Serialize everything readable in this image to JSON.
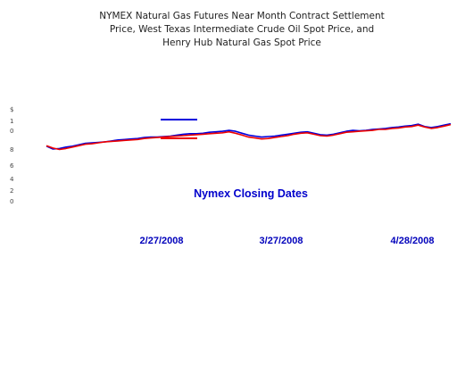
{
  "chart_data": {
    "type": "line",
    "title_lines": [
      "NYMEX Natural Gas Futures Near Month Contract Settlement",
      "Price, West Texas Intermediate Crude Oil Spot Price, and",
      "Henry Hub Natural Gas Spot Price"
    ],
    "xlabel": "Nymex Closing Dates",
    "x_tick_labels": [
      "2/27/2008",
      "3/27/2008",
      "4/28/2008"
    ],
    "y_tick_labels": [
      "$",
      "1",
      "0",
      "8",
      "6",
      "4",
      "2",
      "0"
    ],
    "grid": false,
    "legend_position": "upper-middle",
    "ylim": [
      0,
      14
    ],
    "series": [
      {
        "color": "#0000dd",
        "values": [
          8.05,
          7.75,
          7.8,
          7.95,
          8.05,
          8.2,
          8.35,
          8.4,
          8.45,
          8.5,
          8.6,
          8.7,
          8.75,
          8.8,
          8.85,
          8.95,
          9.0,
          9.0,
          9.05,
          9.1,
          9.2,
          9.3,
          9.35,
          9.35,
          9.4,
          9.5,
          9.55,
          9.6,
          9.7,
          9.6,
          9.4,
          9.2,
          9.1,
          9.0,
          9.05,
          9.1,
          9.2,
          9.3,
          9.4,
          9.5,
          9.55,
          9.4,
          9.25,
          9.2,
          9.3,
          9.45,
          9.6,
          9.7,
          9.65,
          9.7,
          9.8,
          9.85,
          9.9,
          10.0,
          10.05,
          10.15,
          10.2,
          10.35,
          10.1,
          10.0,
          10.1,
          10.25,
          10.4
        ]
      },
      {
        "color": "#ee0000",
        "values": [
          8.1,
          7.85,
          7.7,
          7.8,
          7.95,
          8.1,
          8.25,
          8.3,
          8.4,
          8.5,
          8.55,
          8.6,
          8.65,
          8.7,
          8.75,
          8.85,
          8.9,
          8.95,
          9.0,
          9.05,
          9.1,
          9.15,
          9.2,
          9.25,
          9.3,
          9.35,
          9.4,
          9.45,
          9.55,
          9.4,
          9.2,
          9.0,
          8.9,
          8.8,
          8.85,
          8.95,
          9.05,
          9.15,
          9.3,
          9.4,
          9.45,
          9.3,
          9.15,
          9.1,
          9.2,
          9.35,
          9.5,
          9.55,
          9.6,
          9.65,
          9.7,
          9.8,
          9.8,
          9.9,
          9.95,
          10.05,
          10.1,
          10.25,
          10.05,
          9.9,
          10.0,
          10.15,
          10.3
        ]
      }
    ]
  }
}
